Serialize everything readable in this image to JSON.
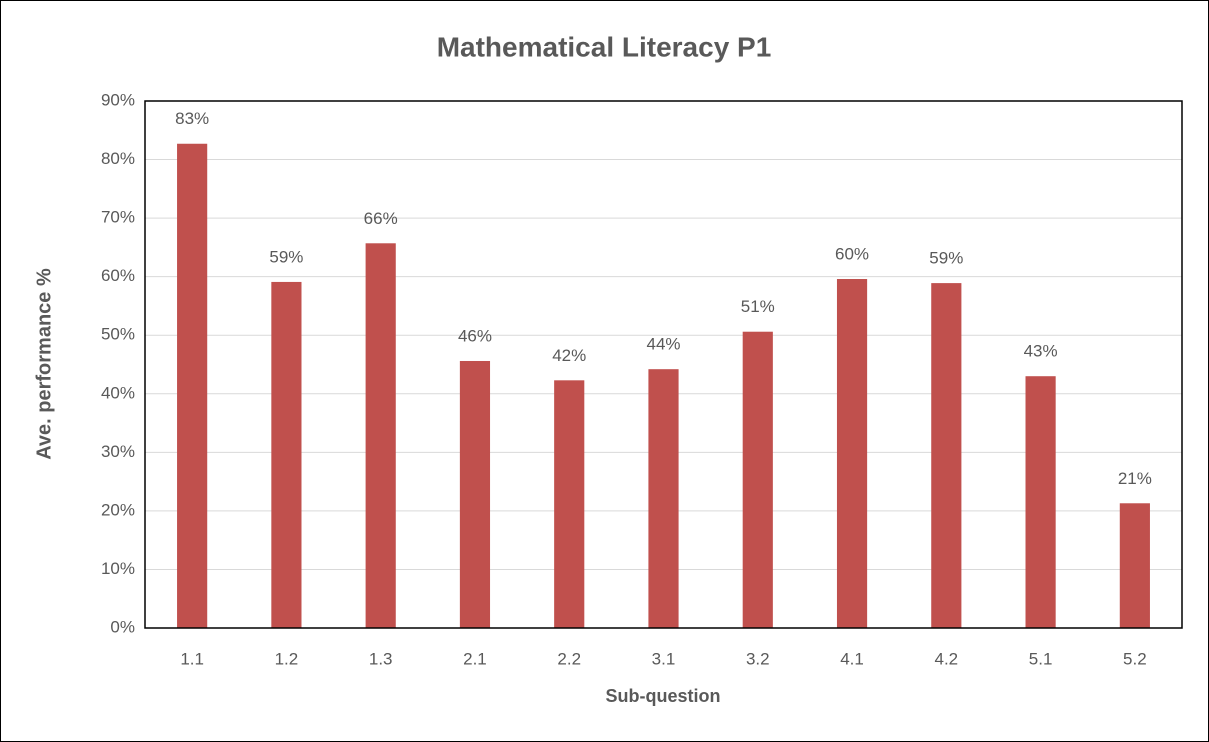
{
  "chart_data": {
    "type": "bar",
    "title": "Mathematical Literacy P1",
    "x_label": "Sub-question",
    "y_label": "Ave. performance %",
    "categories": [
      "1.1",
      "1.2",
      "1.3",
      "2.1",
      "2.2",
      "3.1",
      "3.2",
      "4.1",
      "4.2",
      "5.1",
      "5.2"
    ],
    "values": [
      82.7,
      59.1,
      65.7,
      45.6,
      42.3,
      44.2,
      50.6,
      59.6,
      58.9,
      43.0,
      21.3
    ],
    "value_labels": [
      "83%",
      "59%",
      "66%",
      "46%",
      "42%",
      "44%",
      "51%",
      "60%",
      "59%",
      "43%",
      "21%"
    ],
    "color": "#c0504d",
    "ylim": [
      0,
      90
    ],
    "yticks": [
      {
        "value": 0,
        "label": "0%"
      },
      {
        "value": 10,
        "label": "10%"
      },
      {
        "value": 20,
        "label": "20%"
      },
      {
        "value": 30,
        "label": "30%"
      },
      {
        "value": 40,
        "label": "40%"
      },
      {
        "value": 50,
        "label": "50%"
      },
      {
        "value": 60,
        "label": "60%"
      },
      {
        "value": 70,
        "label": "70%"
      },
      {
        "value": 80,
        "label": "80%"
      },
      {
        "value": 90,
        "label": "90%"
      }
    ],
    "grid": true
  }
}
